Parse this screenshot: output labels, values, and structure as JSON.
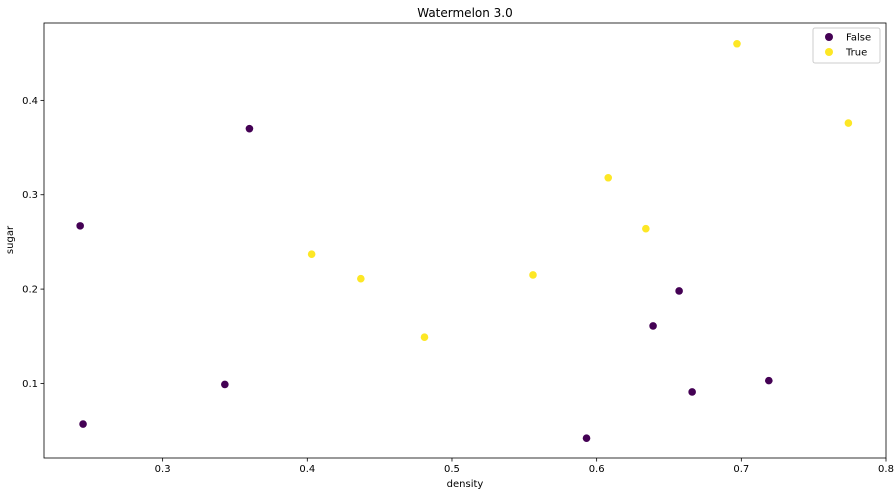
{
  "chart_data": {
    "type": "scatter",
    "title": "Watermelon 3.0",
    "xlabel": "density",
    "ylabel": "sugar",
    "xlim": [
      0.218,
      0.8
    ],
    "ylim": [
      0.021,
      0.482
    ],
    "xticks": [
      0.3,
      0.4,
      0.5,
      0.6,
      0.7,
      0.8
    ],
    "yticks": [
      0.1,
      0.2,
      0.3,
      0.4
    ],
    "legend_position": "top-right",
    "grid": false,
    "series": [
      {
        "name": "False",
        "color": "#440154",
        "points": [
          {
            "x": 0.243,
            "y": 0.267
          },
          {
            "x": 0.245,
            "y": 0.057
          },
          {
            "x": 0.343,
            "y": 0.099
          },
          {
            "x": 0.36,
            "y": 0.37
          },
          {
            "x": 0.593,
            "y": 0.042
          },
          {
            "x": 0.639,
            "y": 0.161
          },
          {
            "x": 0.657,
            "y": 0.198
          },
          {
            "x": 0.666,
            "y": 0.091
          },
          {
            "x": 0.719,
            "y": 0.103
          }
        ]
      },
      {
        "name": "True",
        "color": "#fde725",
        "points": [
          {
            "x": 0.403,
            "y": 0.237
          },
          {
            "x": 0.437,
            "y": 0.211
          },
          {
            "x": 0.481,
            "y": 0.149
          },
          {
            "x": 0.556,
            "y": 0.215
          },
          {
            "x": 0.608,
            "y": 0.318
          },
          {
            "x": 0.634,
            "y": 0.264
          },
          {
            "x": 0.697,
            "y": 0.46
          },
          {
            "x": 0.774,
            "y": 0.376
          }
        ]
      }
    ]
  }
}
